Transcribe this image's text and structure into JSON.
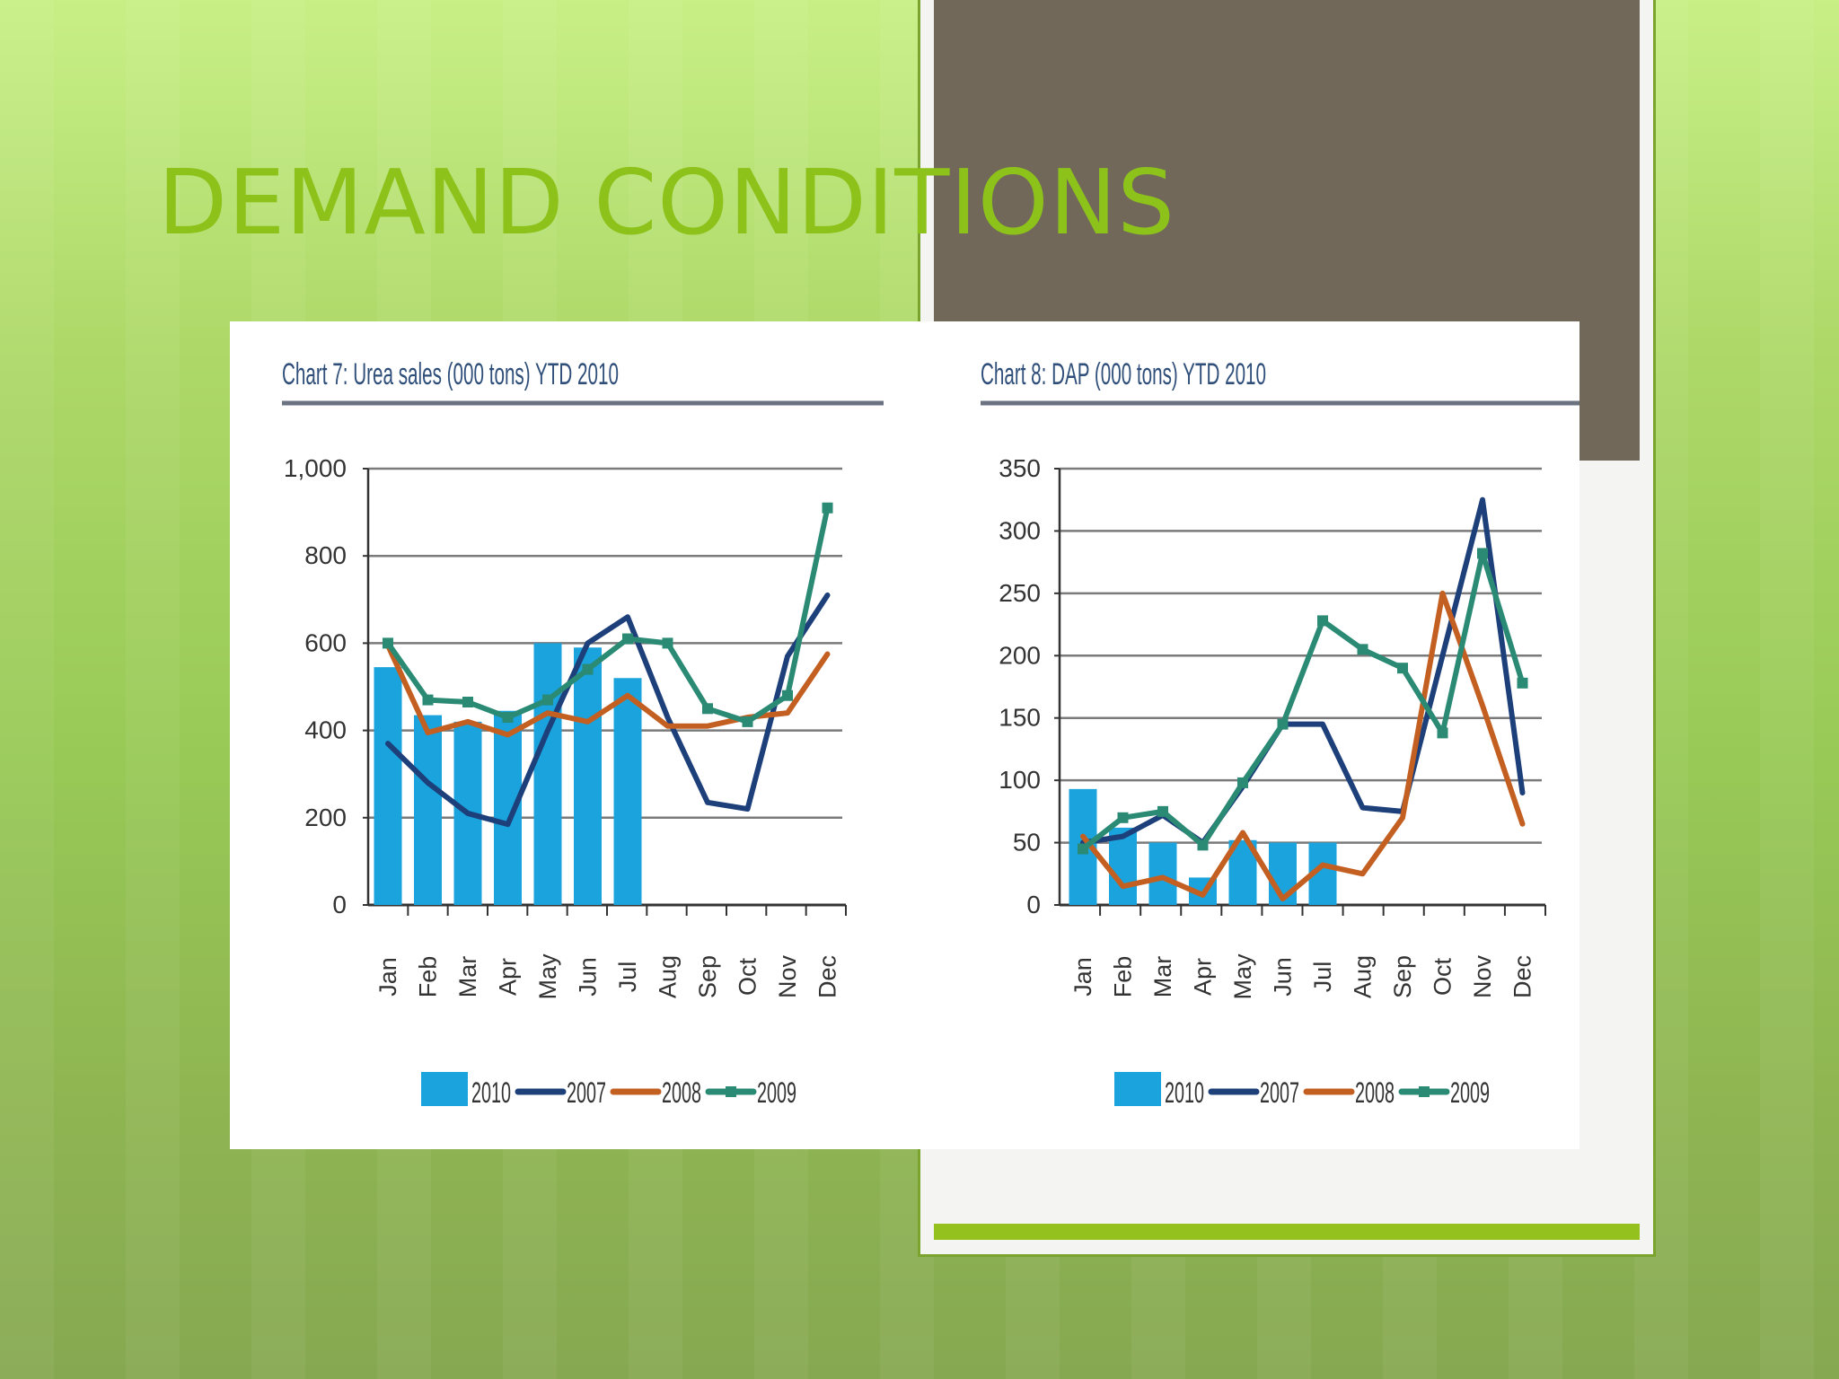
{
  "slide": {
    "title": "DEMAND CONDITIONS"
  },
  "colors": {
    "bar_2010": "#1aa3dc",
    "line_2007": "#1d3f7a",
    "line_2008": "#c45f22",
    "line_2009": "#2a8a74",
    "title_green": "#8cc21a",
    "panel_dark": "#72685a"
  },
  "chart_data": [
    {
      "type": "bar",
      "title": "Chart 7: Urea sales (000 tons) YTD 2010",
      "categories": [
        "Jan",
        "Feb",
        "Mar",
        "Apr",
        "May",
        "Jun",
        "Jul",
        "Aug",
        "Sep",
        "Oct",
        "Nov",
        "Dec"
      ],
      "ylim": [
        0,
        1000
      ],
      "yticks": [
        0,
        200,
        400,
        600,
        800,
        1000
      ],
      "ytick_labels": [
        "0",
        "200",
        "400",
        "600",
        "800",
        "1,000"
      ],
      "grid": true,
      "legend": "bottom",
      "series": [
        {
          "name": "2010",
          "kind": "bar",
          "values": [
            545,
            435,
            420,
            445,
            600,
            590,
            520,
            null,
            null,
            null,
            null,
            null
          ]
        },
        {
          "name": "2007",
          "kind": "line",
          "values": [
            370,
            280,
            210,
            185,
            400,
            600,
            660,
            430,
            235,
            220,
            570,
            710
          ]
        },
        {
          "name": "2008",
          "kind": "line",
          "values": [
            595,
            395,
            420,
            390,
            440,
            420,
            480,
            410,
            410,
            430,
            440,
            575
          ]
        },
        {
          "name": "2009",
          "kind": "line",
          "values": [
            600,
            470,
            465,
            430,
            470,
            540,
            610,
            600,
            450,
            420,
            480,
            910
          ]
        }
      ]
    },
    {
      "type": "bar",
      "title": "Chart 8: DAP (000 tons) YTD 2010",
      "categories": [
        "Jan",
        "Feb",
        "Mar",
        "Apr",
        "May",
        "Jun",
        "Jul",
        "Aug",
        "Sep",
        "Oct",
        "Nov",
        "Dec"
      ],
      "ylim": [
        0,
        350
      ],
      "yticks": [
        0,
        50,
        100,
        150,
        200,
        250,
        300,
        350
      ],
      "ytick_labels": [
        "0",
        "50",
        "100",
        "150",
        "200",
        "250",
        "300",
        "350"
      ],
      "grid": true,
      "legend": "bottom",
      "series": [
        {
          "name": "2010",
          "kind": "bar",
          "values": [
            93,
            62,
            50,
            22,
            52,
            50,
            50,
            null,
            null,
            null,
            null,
            null
          ]
        },
        {
          "name": "2007",
          "kind": "line",
          "values": [
            50,
            55,
            72,
            50,
            95,
            145,
            145,
            78,
            75,
            200,
            325,
            90
          ]
        },
        {
          "name": "2008",
          "kind": "line",
          "values": [
            55,
            15,
            22,
            8,
            58,
            5,
            32,
            25,
            70,
            250,
            160,
            65
          ]
        },
        {
          "name": "2009",
          "kind": "line",
          "values": [
            45,
            70,
            75,
            48,
            98,
            145,
            228,
            205,
            190,
            138,
            282,
            178
          ]
        }
      ]
    }
  ]
}
